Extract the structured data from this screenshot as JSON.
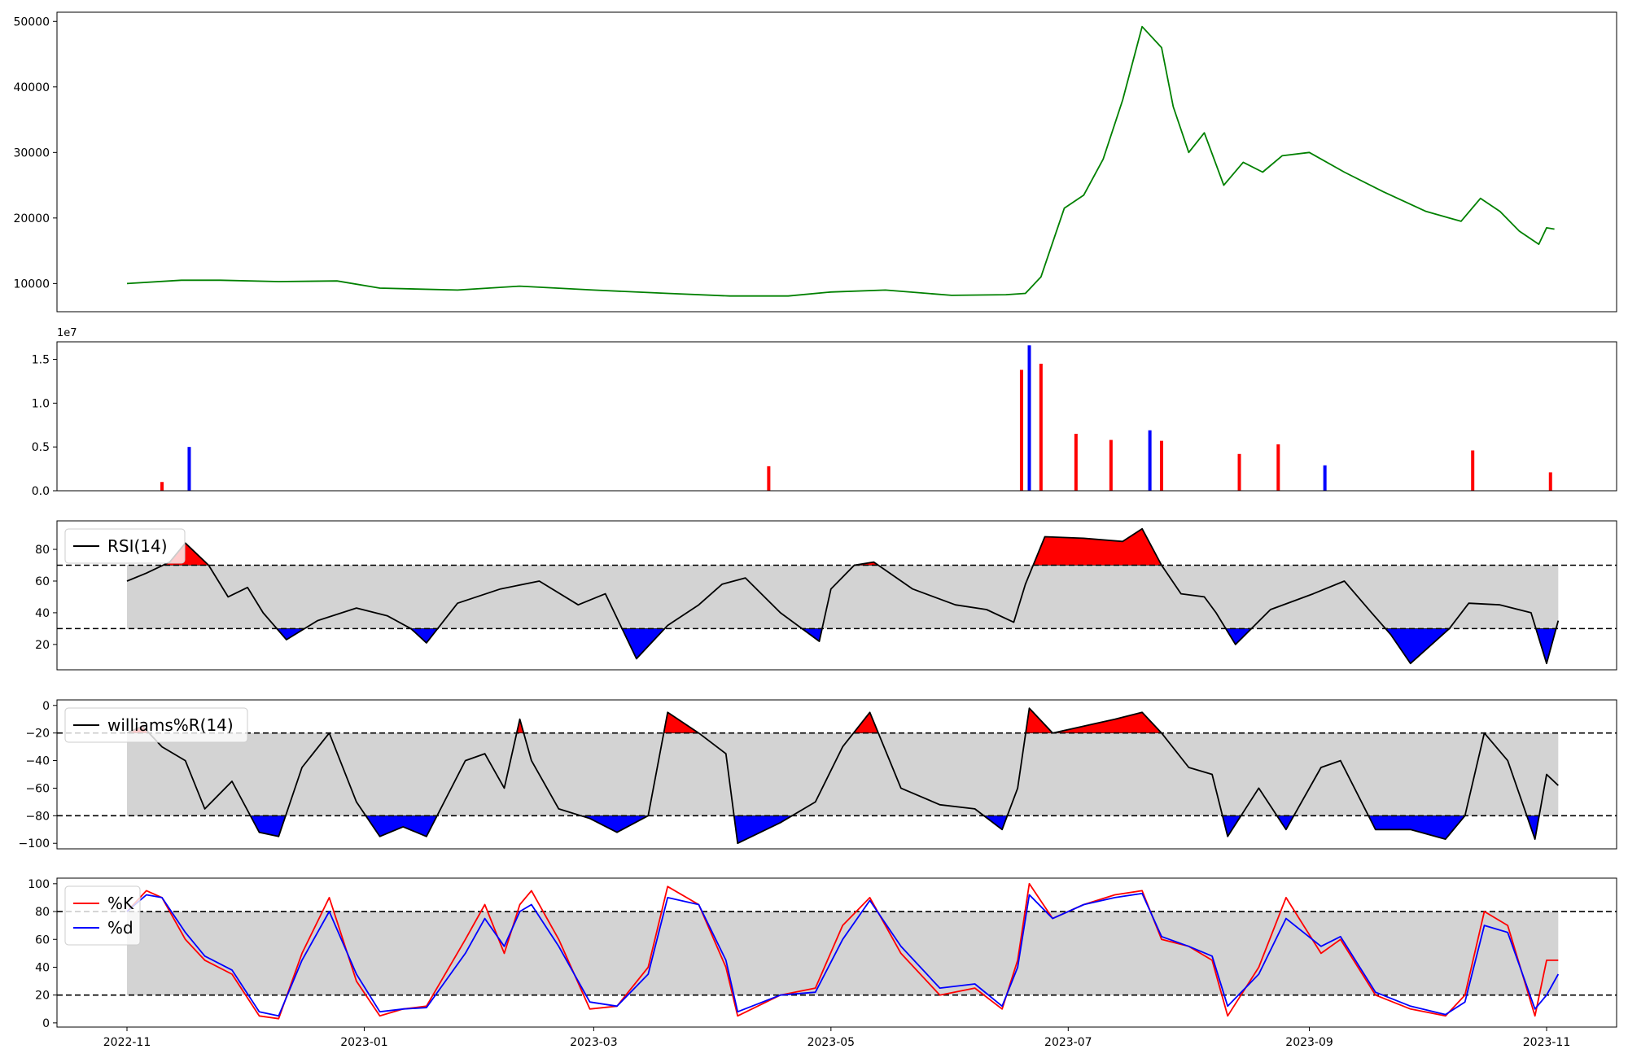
{
  "chart_data": [
    {
      "panel": "price",
      "type": "line",
      "title": "",
      "ylim": [
        5700,
        51400
      ],
      "yticks": [
        10000,
        20000,
        30000,
        40000,
        50000
      ],
      "yticklabels": [
        "10000",
        "20000",
        "30000",
        "40000",
        "50000"
      ],
      "color": "#008000",
      "series": [
        {
          "x": [
            "2022-11-01",
            "2022-11-15",
            "2022-11-25",
            "2022-12-10",
            "2022-12-25",
            "2023-01-05",
            "2023-01-25",
            "2023-02-10",
            "2023-03-01",
            "2023-03-20",
            "2023-04-05",
            "2023-04-20",
            "2023-05-01",
            "2023-05-15",
            "2023-06-01",
            "2023-06-15",
            "2023-06-20",
            "2023-06-24",
            "2023-06-30",
            "2023-07-05",
            "2023-07-10",
            "2023-07-15",
            "2023-07-20",
            "2023-07-25",
            "2023-07-28",
            "2023-08-01",
            "2023-08-05",
            "2023-08-10",
            "2023-08-15",
            "2023-08-20",
            "2023-08-25",
            "2023-09-01",
            "2023-09-10",
            "2023-09-20",
            "2023-10-01",
            "2023-10-10",
            "2023-10-15",
            "2023-10-20",
            "2023-10-25",
            "2023-10-30",
            "2023-11-01",
            "2023-11-03"
          ],
          "values": [
            10000,
            10500,
            10500,
            10300,
            10400,
            9300,
            9000,
            9600,
            9000,
            8500,
            8100,
            8100,
            8700,
            9000,
            8200,
            8300,
            8500,
            11000,
            21500,
            23500,
            29000,
            38000,
            49200,
            46000,
            37000,
            30000,
            33000,
            25000,
            28500,
            27000,
            29500,
            30000,
            27000,
            24000,
            21000,
            19500,
            23000,
            21000,
            18000,
            16000,
            18500,
            18300
          ]
        }
      ]
    },
    {
      "panel": "volume",
      "type": "bar",
      "title": "",
      "offset_label": "1e7",
      "ylim": [
        0,
        17000000
      ],
      "yticks": [
        0,
        5000000,
        10000000,
        15000000
      ],
      "yticklabels": [
        "0.0",
        "0.5",
        "1.0",
        "1.5"
      ],
      "colors": {
        "up": "#ff0000",
        "down": "#0000ff"
      },
      "series": [
        {
          "x": [
            "2022-11-10",
            "2022-11-17",
            "2023-04-15",
            "2023-06-19",
            "2023-06-21",
            "2023-06-24",
            "2023-07-03",
            "2023-07-12",
            "2023-07-22",
            "2023-07-25",
            "2023-08-14",
            "2023-08-24",
            "2023-09-05",
            "2023-10-13",
            "2023-11-02"
          ],
          "values": [
            1000000,
            5000000,
            2800000,
            13800000,
            16600000,
            14500000,
            6500000,
            5800000,
            6900000,
            5700000,
            4200000,
            5300000,
            2900000,
            4600000,
            2100000
          ],
          "colors": [
            "up",
            "down",
            "up",
            "up",
            "down",
            "up",
            "up",
            "up",
            "down",
            "up",
            "up",
            "up",
            "down",
            "up",
            "up"
          ]
        }
      ]
    },
    {
      "panel": "rsi",
      "type": "line",
      "title": "",
      "legend": "RSI(14)",
      "legend_loc": "upper left",
      "ylim": [
        4,
        98
      ],
      "yticks": [
        20,
        40,
        60,
        80
      ],
      "yticklabels": [
        "20",
        "40",
        "60",
        "80"
      ],
      "thresholds": [
        30,
        70
      ],
      "fill_colors": {
        "band": "#d3d3d3",
        "over": "#ff0000",
        "under": "#0000ff"
      },
      "series": [
        {
          "name": "RSI(14)",
          "x": [
            "2022-11-01",
            "2022-11-06",
            "2022-11-12",
            "2022-11-16",
            "2022-11-22",
            "2022-11-27",
            "2022-12-02",
            "2022-12-06",
            "2022-12-12",
            "2022-12-20",
            "2022-12-30",
            "2023-01-07",
            "2023-01-13",
            "2023-01-17",
            "2023-01-25",
            "2023-02-05",
            "2023-02-15",
            "2023-02-25",
            "2023-03-04",
            "2023-03-12",
            "2023-03-20",
            "2023-03-28",
            "2023-04-03",
            "2023-04-09",
            "2023-04-18",
            "2023-04-28",
            "2023-05-01",
            "2023-05-07",
            "2023-05-12",
            "2023-05-22",
            "2023-06-02",
            "2023-06-10",
            "2023-06-17",
            "2023-06-20",
            "2023-06-25",
            "2023-07-05",
            "2023-07-15",
            "2023-07-20",
            "2023-07-25",
            "2023-07-30",
            "2023-08-05",
            "2023-08-08",
            "2023-08-13",
            "2023-08-22",
            "2023-09-02",
            "2023-09-10",
            "2023-09-17",
            "2023-09-22",
            "2023-09-27",
            "2023-10-07",
            "2023-10-12",
            "2023-10-20",
            "2023-10-28",
            "2023-11-01",
            "2023-11-04"
          ],
          "values": [
            60,
            65,
            72,
            84,
            70,
            50,
            56,
            40,
            23,
            35,
            43,
            38,
            30,
            21,
            46,
            55,
            60,
            45,
            52,
            11,
            32,
            45,
            58,
            62,
            40,
            22,
            55,
            70,
            72,
            55,
            45,
            42,
            34,
            58,
            88,
            87,
            85,
            93,
            70,
            52,
            50,
            40,
            20,
            42,
            52,
            60,
            40,
            26,
            8,
            30,
            46,
            45,
            40,
            8,
            35
          ]
        }
      ]
    },
    {
      "panel": "williams",
      "type": "line",
      "title": "",
      "legend": "williams%R(14)",
      "legend_loc": "upper left",
      "ylim": [
        -104,
        4
      ],
      "yticks": [
        -100,
        -80,
        -60,
        -40,
        -20,
        0
      ],
      "yticklabels": [
        "−100",
        "−80",
        "−60",
        "−40",
        "−20",
        "0"
      ],
      "thresholds": [
        -80,
        -20
      ],
      "fill_colors": {
        "band": "#d3d3d3",
        "over": "#ff0000",
        "under": "#0000ff"
      },
      "series": [
        {
          "name": "williams%R(14)",
          "x": [
            "2022-11-01",
            "2022-11-05",
            "2022-11-10",
            "2022-11-16",
            "2022-11-21",
            "2022-11-28",
            "2022-12-05",
            "2022-12-10",
            "2022-12-16",
            "2022-12-23",
            "2022-12-30",
            "2023-01-05",
            "2023-01-11",
            "2023-01-17",
            "2023-01-27",
            "2023-02-01",
            "2023-02-06",
            "2023-02-10",
            "2023-02-13",
            "2023-02-20",
            "2023-02-28",
            "2023-03-07",
            "2023-03-15",
            "2023-03-20",
            "2023-03-28",
            "2023-04-04",
            "2023-04-07",
            "2023-04-18",
            "2023-04-27",
            "2023-05-04",
            "2023-05-11",
            "2023-05-19",
            "2023-05-29",
            "2023-06-07",
            "2023-06-14",
            "2023-06-18",
            "2023-06-21",
            "2023-06-27",
            "2023-07-05",
            "2023-07-13",
            "2023-07-20",
            "2023-07-25",
            "2023-08-01",
            "2023-08-07",
            "2023-08-11",
            "2023-08-19",
            "2023-08-26",
            "2023-09-04",
            "2023-09-09",
            "2023-09-18",
            "2023-09-27",
            "2023-10-06",
            "2023-10-11",
            "2023-10-16",
            "2023-10-22",
            "2023-10-29",
            "2023-11-01",
            "2023-11-04"
          ],
          "values": [
            -20,
            -15,
            -30,
            -40,
            -75,
            -55,
            -92,
            -95,
            -45,
            -20,
            -70,
            -95,
            -88,
            -95,
            -40,
            -35,
            -60,
            -10,
            -40,
            -75,
            -82,
            -92,
            -80,
            -5,
            -20,
            -35,
            -100,
            -85,
            -70,
            -30,
            -5,
            -60,
            -72,
            -75,
            -90,
            -60,
            -2,
            -20,
            -15,
            -10,
            -5,
            -20,
            -45,
            -50,
            -95,
            -60,
            -90,
            -45,
            -40,
            -90,
            -90,
            -97,
            -80,
            -20,
            -40,
            -97,
            -50,
            -58
          ]
        }
      ]
    },
    {
      "panel": "stochastic",
      "type": "line",
      "title": "",
      "legend_loc": "upper left",
      "ylim": [
        -3,
        104
      ],
      "yticks": [
        0,
        20,
        40,
        60,
        80,
        100
      ],
      "yticklabels": [
        "0",
        "20",
        "40",
        "60",
        "80",
        "100"
      ],
      "thresholds": [
        20,
        80
      ],
      "fill_colors": {
        "band": "#d3d3d3"
      },
      "xticks": [
        "2022-11-01",
        "2023-01-01",
        "2023-03-01",
        "2023-05-01",
        "2023-07-01",
        "2023-09-01",
        "2023-11-01"
      ],
      "xticklabels": [
        "2022-11",
        "2023-01",
        "2023-03",
        "2023-05",
        "2023-07",
        "2023-09",
        "2023-11"
      ],
      "xlim": [
        "2022-10-14",
        "2023-11-19"
      ],
      "series": [
        {
          "name": "%K",
          "color": "#ff0000",
          "x": [
            "2022-11-01",
            "2022-11-06",
            "2022-11-10",
            "2022-11-16",
            "2022-11-21",
            "2022-11-28",
            "2022-12-05",
            "2022-12-10",
            "2022-12-16",
            "2022-12-23",
            "2022-12-30",
            "2023-01-05",
            "2023-01-11",
            "2023-01-17",
            "2023-01-27",
            "2023-02-01",
            "2023-02-06",
            "2023-02-10",
            "2023-02-13",
            "2023-02-20",
            "2023-02-28",
            "2023-03-07",
            "2023-03-15",
            "2023-03-20",
            "2023-03-28",
            "2023-04-04",
            "2023-04-07",
            "2023-04-18",
            "2023-04-27",
            "2023-05-04",
            "2023-05-11",
            "2023-05-19",
            "2023-05-29",
            "2023-06-07",
            "2023-06-14",
            "2023-06-18",
            "2023-06-21",
            "2023-06-27",
            "2023-07-05",
            "2023-07-13",
            "2023-07-20",
            "2023-07-25",
            "2023-08-01",
            "2023-08-07",
            "2023-08-11",
            "2023-08-19",
            "2023-08-26",
            "2023-09-04",
            "2023-09-09",
            "2023-09-18",
            "2023-09-27",
            "2023-10-06",
            "2023-10-11",
            "2023-10-16",
            "2023-10-22",
            "2023-10-29",
            "2023-11-01",
            "2023-11-04"
          ],
          "values": [
            80,
            95,
            90,
            60,
            45,
            35,
            5,
            3,
            50,
            90,
            30,
            5,
            10,
            12,
            60,
            85,
            50,
            85,
            95,
            60,
            10,
            12,
            40,
            98,
            85,
            40,
            5,
            20,
            25,
            70,
            90,
            50,
            20,
            25,
            10,
            45,
            100,
            75,
            85,
            92,
            95,
            60,
            55,
            45,
            5,
            40,
            90,
            50,
            60,
            20,
            10,
            5,
            20,
            80,
            70,
            5,
            45,
            45
          ]
        },
        {
          "name": "%d",
          "color": "#0000ff",
          "x": [
            "2022-11-01",
            "2022-11-06",
            "2022-11-10",
            "2022-11-16",
            "2022-11-21",
            "2022-11-28",
            "2022-12-05",
            "2022-12-10",
            "2022-12-16",
            "2022-12-23",
            "2022-12-30",
            "2023-01-05",
            "2023-01-11",
            "2023-01-17",
            "2023-01-27",
            "2023-02-01",
            "2023-02-06",
            "2023-02-10",
            "2023-02-13",
            "2023-02-20",
            "2023-02-28",
            "2023-03-07",
            "2023-03-15",
            "2023-03-20",
            "2023-03-28",
            "2023-04-04",
            "2023-04-07",
            "2023-04-18",
            "2023-04-27",
            "2023-05-04",
            "2023-05-11",
            "2023-05-19",
            "2023-05-29",
            "2023-06-07",
            "2023-06-14",
            "2023-06-18",
            "2023-06-21",
            "2023-06-27",
            "2023-07-05",
            "2023-07-13",
            "2023-07-20",
            "2023-07-25",
            "2023-08-01",
            "2023-08-07",
            "2023-08-11",
            "2023-08-19",
            "2023-08-26",
            "2023-09-04",
            "2023-09-09",
            "2023-09-18",
            "2023-09-27",
            "2023-10-06",
            "2023-10-11",
            "2023-10-16",
            "2023-10-22",
            "2023-10-29",
            "2023-11-01",
            "2023-11-04"
          ],
          "values": [
            80,
            92,
            90,
            65,
            48,
            38,
            8,
            5,
            45,
            80,
            35,
            8,
            10,
            11,
            50,
            75,
            55,
            80,
            85,
            55,
            15,
            12,
            35,
            90,
            85,
            45,
            8,
            20,
            22,
            60,
            88,
            55,
            25,
            28,
            12,
            40,
            92,
            75,
            85,
            90,
            93,
            62,
            55,
            48,
            12,
            35,
            75,
            55,
            62,
            22,
            12,
            6,
            15,
            70,
            65,
            10,
            20,
            35
          ]
        }
      ]
    }
  ]
}
